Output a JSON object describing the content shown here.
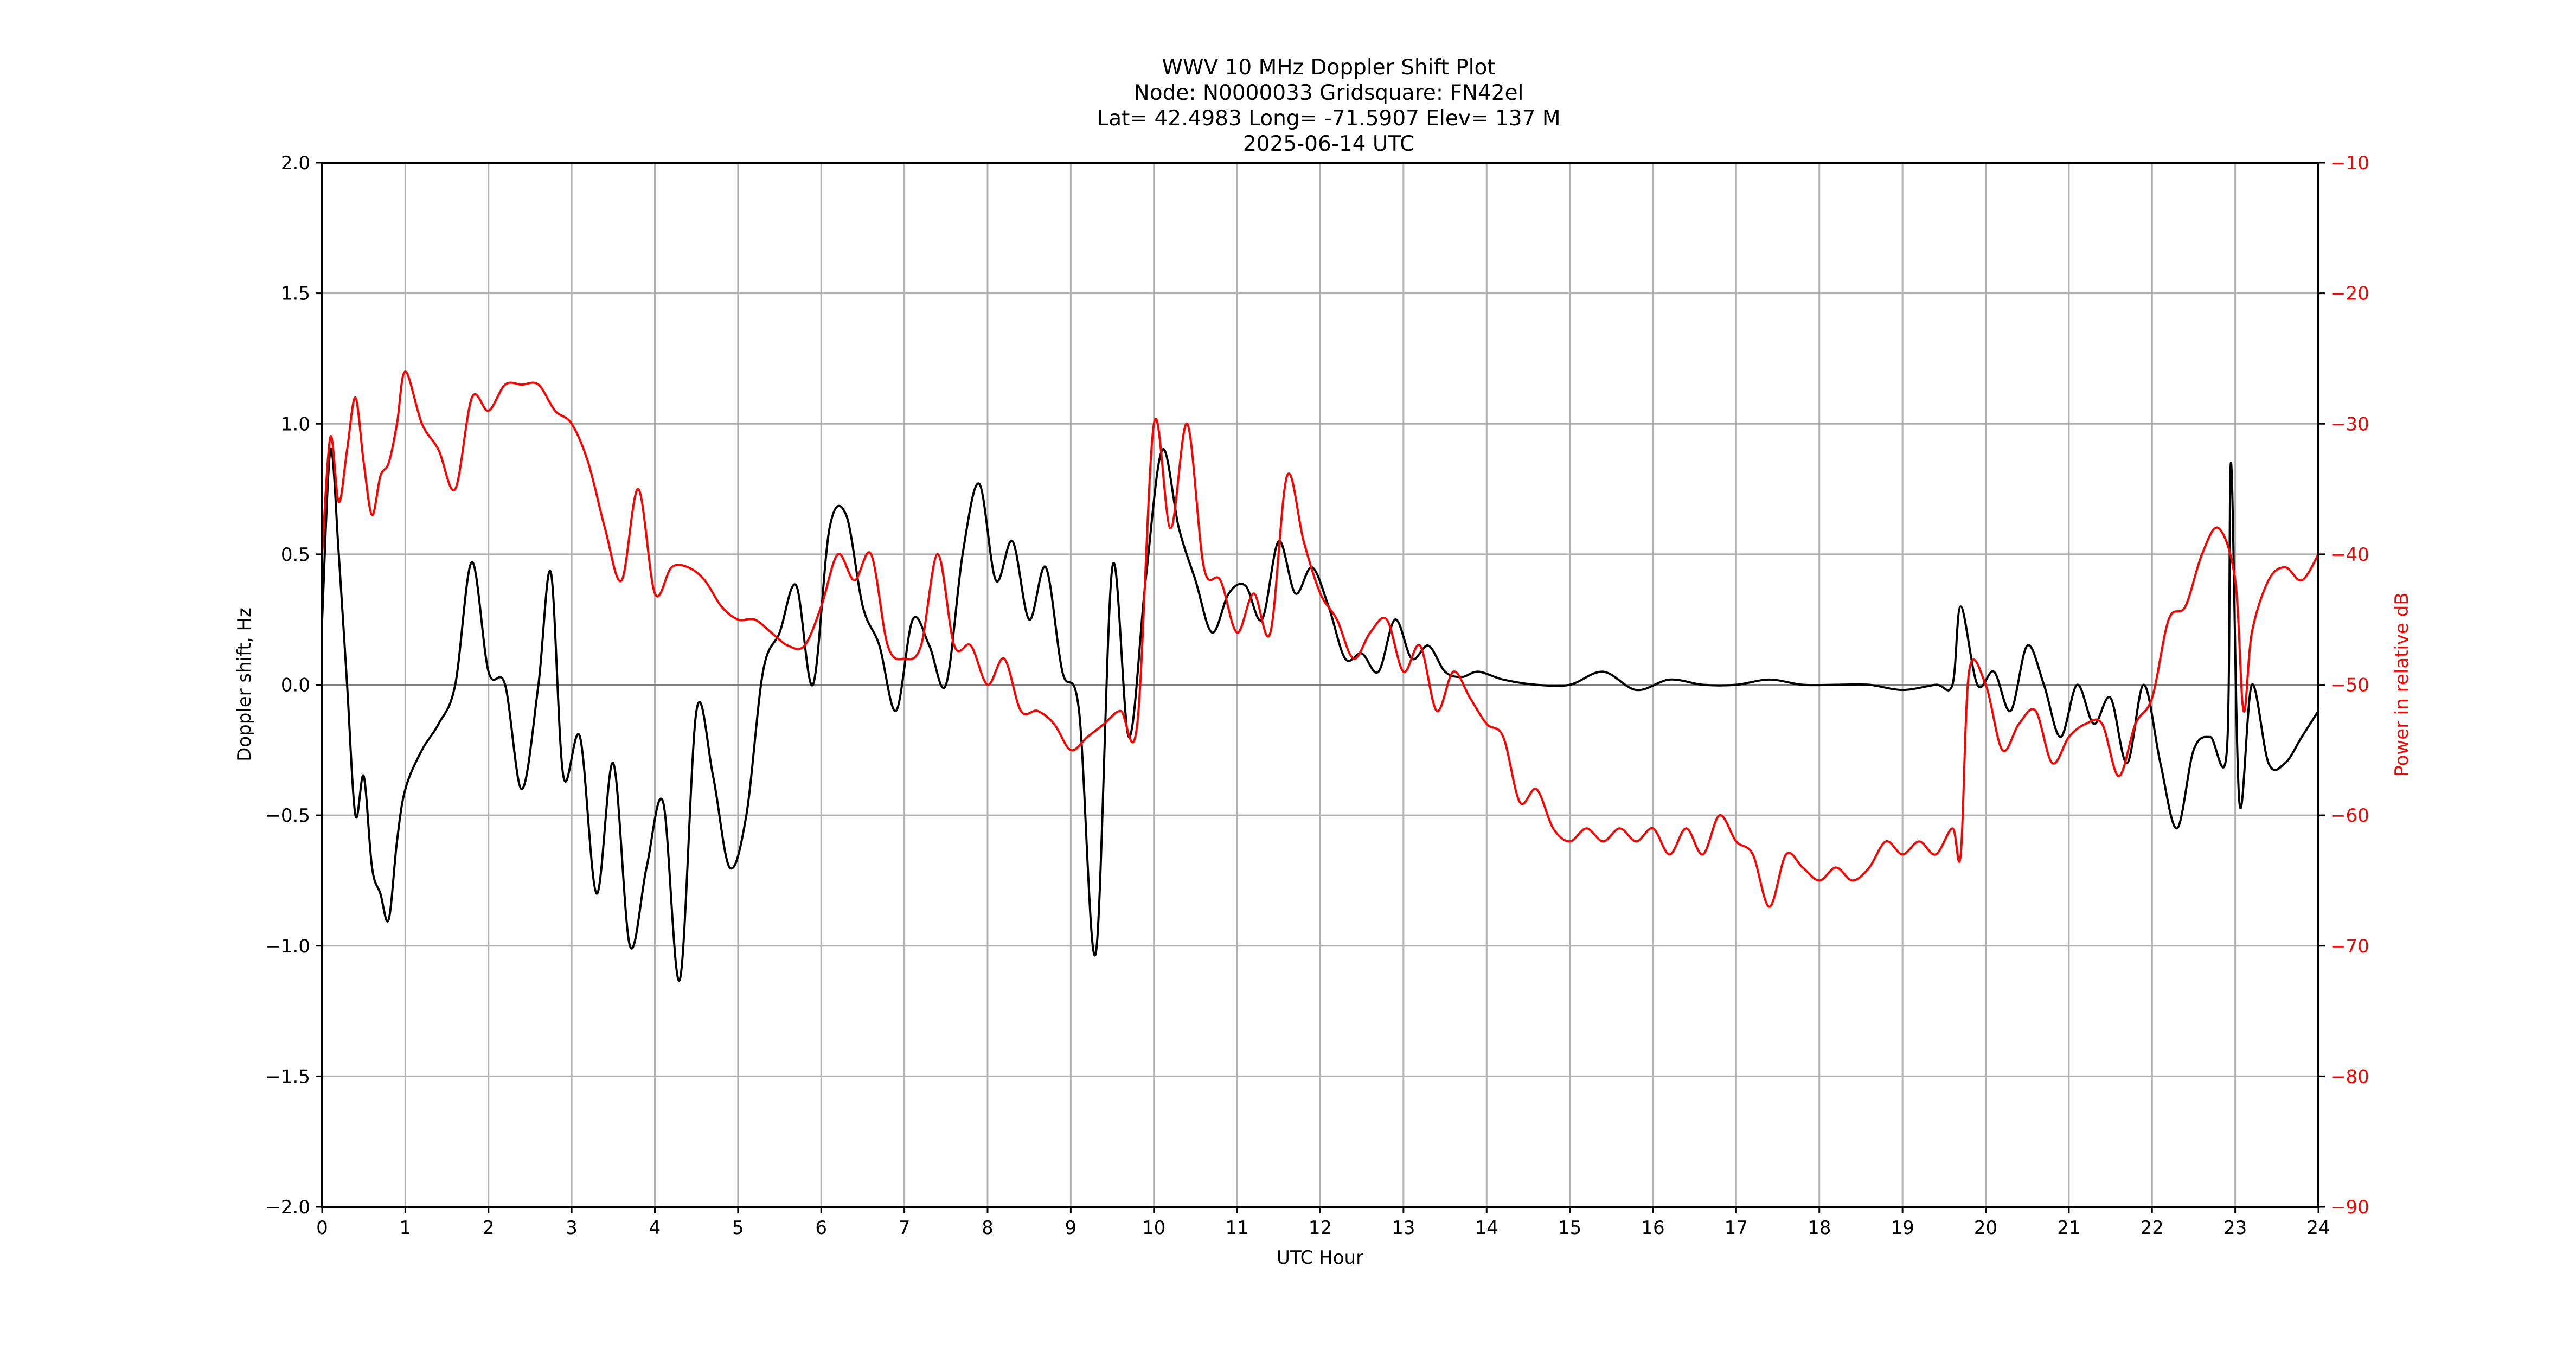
{
  "title": {
    "line1": "WWV 10 MHz Doppler Shift Plot",
    "line2": "Node:  N0000033     Gridsquare:  FN42el",
    "line3": "Lat= 42.4983    Long= -71.5907    Elev= 137 M",
    "line4": "2025-06-14  UTC"
  },
  "colors": {
    "doppler": "#000000",
    "power": "#ff0000",
    "grid": "#b0b0b0"
  },
  "chart_data": {
    "type": "line",
    "title": "WWV 10 MHz Doppler Shift Plot",
    "subtitle": [
      "Node:  N0000033     Gridsquare:  FN42el",
      "Lat= 42.4983    Long= -71.5907    Elev= 137 M",
      "2025-06-14  UTC"
    ],
    "xlabel": "UTC Hour",
    "ylabel": "Doppler shift, Hz",
    "y2label": "Power in relative dB",
    "xlim": [
      0,
      24
    ],
    "ylim": [
      -2.0,
      2.0
    ],
    "y2lim": [
      -90,
      -10
    ],
    "xticks": [
      "0",
      "1",
      "2",
      "3",
      "4",
      "5",
      "6",
      "7",
      "8",
      "9",
      "10",
      "11",
      "12",
      "13",
      "14",
      "15",
      "16",
      "17",
      "18",
      "19",
      "20",
      "21",
      "22",
      "23",
      "24"
    ],
    "yticks": [
      "2.0",
      "1.5",
      "1.0",
      "0.5",
      "0.0",
      "−0.5",
      "−1.0",
      "−1.5",
      "−2.0"
    ],
    "y2ticks": [
      "−10",
      "−20",
      "−30",
      "−40",
      "−50",
      "−60",
      "−70",
      "−80",
      "−90"
    ],
    "grid": true,
    "series": [
      {
        "name": "Doppler shift, Hz",
        "axis": "left",
        "color": "#000000",
        "x": [
          0,
          0.1,
          0.2,
          0.3,
          0.4,
          0.5,
          0.6,
          0.7,
          0.8,
          0.9,
          1.0,
          1.2,
          1.4,
          1.6,
          1.8,
          2.0,
          2.2,
          2.4,
          2.6,
          2.75,
          2.9,
          3.1,
          3.3,
          3.5,
          3.7,
          3.9,
          4.1,
          4.3,
          4.5,
          4.7,
          4.9,
          5.1,
          5.3,
          5.5,
          5.7,
          5.9,
          6.1,
          6.3,
          6.5,
          6.7,
          6.9,
          7.1,
          7.3,
          7.5,
          7.7,
          7.9,
          8.1,
          8.3,
          8.5,
          8.7,
          8.9,
          9.1,
          9.3,
          9.5,
          9.7,
          9.9,
          10.1,
          10.3,
          10.5,
          10.7,
          10.9,
          11.1,
          11.3,
          11.5,
          11.7,
          11.9,
          12.1,
          12.3,
          12.5,
          12.7,
          12.9,
          13.1,
          13.3,
          13.5,
          13.7,
          13.9,
          14.2,
          14.6,
          15.0,
          15.4,
          15.8,
          16.2,
          16.6,
          17.0,
          17.4,
          17.8,
          18.2,
          18.6,
          19.0,
          19.4,
          19.6,
          19.7,
          19.9,
          20.1,
          20.3,
          20.5,
          20.7,
          20.9,
          21.1,
          21.3,
          21.5,
          21.7,
          21.9,
          22.1,
          22.3,
          22.5,
          22.7,
          22.9,
          22.95,
          23.05,
          23.2,
          23.4,
          23.6,
          23.8,
          24
        ],
        "values": [
          0.25,
          0.9,
          0.5,
          0.0,
          -0.5,
          -0.35,
          -0.7,
          -0.8,
          -0.9,
          -0.6,
          -0.4,
          -0.25,
          -0.15,
          0.0,
          0.47,
          0.05,
          0.0,
          -0.4,
          0.0,
          0.43,
          -0.35,
          -0.2,
          -0.8,
          -0.3,
          -1.0,
          -0.7,
          -0.45,
          -1.13,
          -0.1,
          -0.35,
          -0.7,
          -0.5,
          0.05,
          0.2,
          0.38,
          0.0,
          0.6,
          0.65,
          0.3,
          0.15,
          -0.1,
          0.25,
          0.15,
          0.0,
          0.5,
          0.77,
          0.4,
          0.55,
          0.25,
          0.45,
          0.05,
          -0.1,
          -1.03,
          0.45,
          -0.2,
          0.4,
          0.9,
          0.6,
          0.4,
          0.2,
          0.35,
          0.38,
          0.25,
          0.55,
          0.35,
          0.45,
          0.3,
          0.1,
          0.12,
          0.05,
          0.25,
          0.1,
          0.15,
          0.05,
          0.03,
          0.05,
          0.02,
          0.0,
          0.0,
          0.05,
          -0.02,
          0.02,
          0.0,
          0.0,
          0.02,
          0.0,
          0.0,
          0.0,
          -0.02,
          0.0,
          0.0,
          0.3,
          0.0,
          0.05,
          -0.1,
          0.15,
          0.0,
          -0.2,
          0.0,
          -0.15,
          -0.05,
          -0.3,
          0.0,
          -0.3,
          -0.55,
          -0.25,
          -0.2,
          -0.25,
          0.85,
          -0.45,
          0.0,
          -0.3,
          -0.3,
          -0.2,
          -0.1
        ],
        "line_width": 4
      },
      {
        "name": "Power in relative dB",
        "axis": "right",
        "color": "#ff0000",
        "x": [
          0,
          0.1,
          0.2,
          0.3,
          0.4,
          0.5,
          0.6,
          0.7,
          0.8,
          0.9,
          1.0,
          1.2,
          1.4,
          1.6,
          1.8,
          2.0,
          2.2,
          2.4,
          2.6,
          2.8,
          3.0,
          3.2,
          3.4,
          3.6,
          3.8,
          4.0,
          4.2,
          4.4,
          4.6,
          4.8,
          5.0,
          5.2,
          5.4,
          5.6,
          5.8,
          6.0,
          6.2,
          6.4,
          6.6,
          6.8,
          7.0,
          7.2,
          7.4,
          7.6,
          7.8,
          8.0,
          8.2,
          8.4,
          8.6,
          8.8,
          9.0,
          9.2,
          9.4,
          9.6,
          9.8,
          10.0,
          10.2,
          10.4,
          10.6,
          10.8,
          11.0,
          11.2,
          11.4,
          11.6,
          11.8,
          12.0,
          12.2,
          12.4,
          12.6,
          12.8,
          13.0,
          13.2,
          13.4,
          13.6,
          13.8,
          14.0,
          14.2,
          14.4,
          14.6,
          14.8,
          15.0,
          15.2,
          15.4,
          15.6,
          15.8,
          16.0,
          16.2,
          16.4,
          16.6,
          16.8,
          17.0,
          17.2,
          17.4,
          17.6,
          17.8,
          18.0,
          18.2,
          18.4,
          18.6,
          18.8,
          19.0,
          19.2,
          19.4,
          19.6,
          19.7,
          19.8,
          20.0,
          20.2,
          20.4,
          20.6,
          20.8,
          21.0,
          21.2,
          21.4,
          21.6,
          21.8,
          22.0,
          22.2,
          22.4,
          22.6,
          22.8,
          23.0,
          23.1,
          23.2,
          23.4,
          23.6,
          23.8,
          24
        ],
        "values": [
          -40,
          -31,
          -36,
          -32,
          -28,
          -33,
          -37,
          -34,
          -33,
          -30,
          -26,
          -30,
          -32,
          -35,
          -28,
          -29,
          -27,
          -27,
          -27,
          -29,
          -30,
          -33,
          -38,
          -42,
          -35,
          -43,
          -41,
          -41,
          -42,
          -44,
          -45,
          -45,
          -46,
          -47,
          -47,
          -44,
          -40,
          -42,
          -40,
          -47,
          -48,
          -47,
          -40,
          -47,
          -47,
          -50,
          -48,
          -52,
          -52,
          -53,
          -55,
          -54,
          -53,
          -52,
          -53,
          -30,
          -38,
          -30,
          -41,
          -42,
          -46,
          -43,
          -46,
          -34,
          -39,
          -43,
          -45,
          -48,
          -46,
          -45,
          -49,
          -47,
          -52,
          -49,
          -51,
          -53,
          -54,
          -59,
          -58,
          -61,
          -62,
          -61,
          -62,
          -61,
          -62,
          -61,
          -63,
          -61,
          -63,
          -60,
          -62,
          -63,
          -67,
          -63,
          -64,
          -65,
          -64,
          -65,
          -64,
          -62,
          -63,
          -62,
          -63,
          -61,
          -63,
          -49,
          -50,
          -55,
          -53,
          -52,
          -56,
          -54,
          -53,
          -53,
          -57,
          -53,
          -51,
          -45,
          -44,
          -40,
          -38,
          -42,
          -52,
          -46,
          -42,
          -41,
          -42,
          -40
        ],
        "line_width": 4
      }
    ]
  },
  "axes": {
    "xlabel": "UTC Hour",
    "ylabel": "Doppler shift, Hz",
    "y2label": "Power in relative dB"
  }
}
